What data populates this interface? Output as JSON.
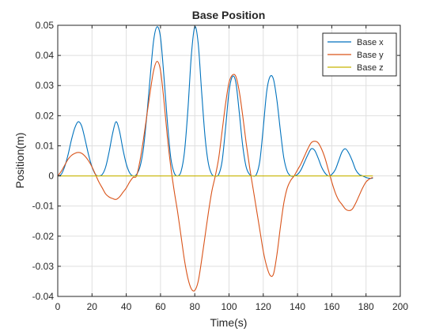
{
  "chart_data": {
    "type": "line",
    "title": "Base Position",
    "xlabel": "Time(s)",
    "ylabel": "Position(m)",
    "xlim": [
      0,
      200
    ],
    "ylim": [
      -0.04,
      0.05
    ],
    "xticks": [
      0,
      20,
      40,
      60,
      80,
      100,
      120,
      140,
      160,
      180,
      200
    ],
    "xtick_labels": [
      "0",
      "20",
      "40",
      "60",
      "80",
      "100",
      "120",
      "140",
      "160",
      "180",
      "200"
    ],
    "yticks": [
      -0.04,
      -0.03,
      -0.02,
      -0.01,
      0,
      0.01,
      0.02,
      0.03,
      0.04,
      0.05
    ],
    "ytick_labels": [
      "-0.04",
      "-0.03",
      "-0.02",
      "-0.01",
      "0",
      "0.01",
      "0.02",
      "0.03",
      "0.04",
      "0.05"
    ],
    "grid": true,
    "legend_position": "top-right",
    "series": [
      {
        "name": "Base x",
        "color": "#0072bd",
        "x": [
          0,
          2,
          4,
          6,
          8,
          10,
          12,
          14,
          16,
          18,
          20,
          22,
          24,
          26,
          28,
          30,
          32,
          34,
          36,
          38,
          40,
          42,
          44,
          46,
          48,
          50,
          52,
          54,
          56,
          58,
          60,
          62,
          64,
          66,
          68,
          70,
          72,
          74,
          76,
          78,
          80,
          82,
          84,
          86,
          88,
          90,
          92,
          94,
          96,
          98,
          100,
          102,
          104,
          106,
          108,
          110,
          112,
          114,
          116,
          118,
          120,
          122,
          124,
          126,
          128,
          130,
          132,
          134,
          136,
          138,
          140,
          142,
          144,
          146,
          148,
          150,
          152,
          154,
          156,
          158,
          160,
          162,
          164,
          166,
          168,
          170,
          172,
          174,
          176,
          178,
          180,
          182,
          184
        ],
        "y": [
          0,
          0.0005,
          0.003,
          0.007,
          0.012,
          0.016,
          0.018,
          0.0165,
          0.012,
          0.007,
          0.003,
          0.0005,
          0,
          0.0005,
          0.003,
          0.008,
          0.014,
          0.018,
          0.015,
          0.009,
          0.004,
          0.001,
          0,
          0.0005,
          0.003,
          0.009,
          0.02,
          0.033,
          0.045,
          0.0495,
          0.046,
          0.033,
          0.018,
          0.006,
          0.001,
          0,
          0.0015,
          0.008,
          0.022,
          0.04,
          0.0495,
          0.044,
          0.028,
          0.013,
          0.004,
          0.0005,
          0,
          0.0005,
          0.005,
          0.016,
          0.028,
          0.033,
          0.031,
          0.021,
          0.01,
          0.003,
          0.0005,
          0,
          0.0005,
          0.005,
          0.016,
          0.028,
          0.033,
          0.032,
          0.025,
          0.015,
          0.006,
          0.0015,
          0,
          0,
          0.0005,
          0.002,
          0.0045,
          0.007,
          0.009,
          0.0085,
          0.006,
          0.003,
          0.001,
          0,
          0.0005,
          0.002,
          0.005,
          0.008,
          0.009,
          0.0075,
          0.005,
          0.002,
          0.0005,
          0,
          -0.0005,
          -0.0008,
          -0.0008
        ]
      },
      {
        "name": "Base y",
        "color": "#d95319",
        "x": [
          0,
          2,
          4,
          6,
          8,
          10,
          12,
          14,
          16,
          18,
          20,
          22,
          24,
          26,
          28,
          30,
          32,
          34,
          36,
          38,
          40,
          42,
          44,
          46,
          48,
          50,
          52,
          54,
          56,
          58,
          60,
          62,
          64,
          66,
          68,
          70,
          72,
          74,
          76,
          78,
          80,
          82,
          84,
          86,
          88,
          90,
          92,
          94,
          96,
          98,
          100,
          102,
          104,
          106,
          108,
          110,
          112,
          114,
          116,
          118,
          120,
          122,
          124,
          126,
          128,
          130,
          132,
          134,
          136,
          138,
          140,
          142,
          144,
          146,
          148,
          150,
          152,
          154,
          156,
          158,
          160,
          162,
          164,
          166,
          168,
          170,
          172,
          174,
          176,
          178,
          180,
          182,
          184
        ],
        "y": [
          0,
          0.0015,
          0.0035,
          0.0055,
          0.0068,
          0.0075,
          0.0078,
          0.0075,
          0.0065,
          0.005,
          0.003,
          0.0005,
          -0.002,
          -0.004,
          -0.006,
          -0.007,
          -0.0075,
          -0.0078,
          -0.007,
          -0.0055,
          -0.004,
          -0.002,
          -0.0005,
          0,
          0.005,
          0.012,
          0.02,
          0.028,
          0.035,
          0.038,
          0.035,
          0.025,
          0.013,
          0.003,
          -0.005,
          -0.012,
          -0.02,
          -0.028,
          -0.034,
          -0.0375,
          -0.038,
          -0.035,
          -0.028,
          -0.02,
          -0.012,
          -0.005,
          0,
          0.006,
          0.015,
          0.024,
          0.031,
          0.0335,
          0.033,
          0.028,
          0.02,
          0.011,
          0.003,
          -0.004,
          -0.011,
          -0.018,
          -0.025,
          -0.03,
          -0.033,
          -0.0325,
          -0.026,
          -0.017,
          -0.009,
          -0.004,
          -0.0015,
          0,
          0.002,
          0.004,
          0.0065,
          0.009,
          0.011,
          0.0115,
          0.011,
          0.009,
          0.006,
          0.002,
          -0.002,
          -0.0055,
          -0.008,
          -0.0095,
          -0.011,
          -0.0115,
          -0.011,
          -0.009,
          -0.0065,
          -0.004,
          -0.002,
          -0.001,
          -0.0005
        ]
      },
      {
        "name": "Base z",
        "color": "#c8b400",
        "x": [
          0,
          184
        ],
        "y": [
          0,
          0
        ]
      }
    ]
  }
}
